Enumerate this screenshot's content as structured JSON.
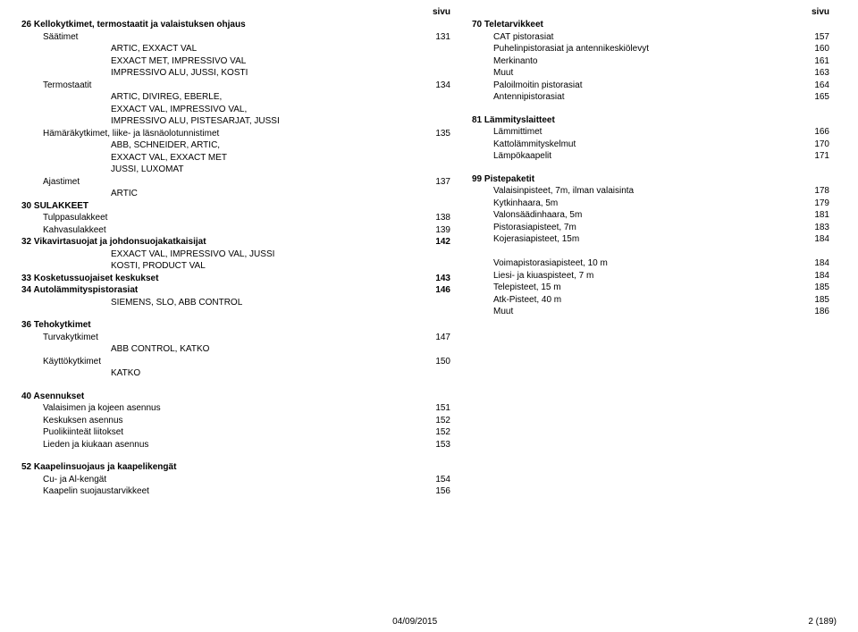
{
  "left": {
    "header": "sivu",
    "sections": [
      {
        "title": "26 Kellokytkimet, termostaatit ja valaistuksen ohjaus",
        "rows": [
          {
            "indent": 1,
            "label": "Säätimet",
            "page": "131"
          },
          {
            "indent": 2,
            "label": "ARTIC, EXXACT VAL"
          },
          {
            "indent": 2,
            "label": "EXXACT MET, IMPRESSIVO VAL"
          },
          {
            "indent": 2,
            "label": "IMPRESSIVO ALU, JUSSI, KOSTI"
          },
          {
            "indent": 1,
            "label": "Termostaatit",
            "page": "134"
          },
          {
            "indent": 2,
            "label": "ARTIC, DIVIREG, EBERLE,"
          },
          {
            "indent": 2,
            "label": "EXXACT VAL, IMPRESSIVO VAL,"
          },
          {
            "indent": 2,
            "label": "IMPRESSIVO ALU, PISTESARJAT, JUSSI"
          },
          {
            "indent": 1,
            "label": "Hämäräkytkimet, liike- ja läsnäolotunnistimet",
            "page": "135"
          },
          {
            "indent": 2,
            "label": "ABB, SCHNEIDER, ARTIC,"
          },
          {
            "indent": 2,
            "label": "EXXACT VAL, EXXACT MET"
          },
          {
            "indent": 2,
            "label": "JUSSI, LUXOMAT"
          },
          {
            "indent": 1,
            "label": "Ajastimet",
            "page": "137"
          },
          {
            "indent": 2,
            "label": "ARTIC"
          }
        ]
      },
      {
        "title": "30 SULAKKEET",
        "rows": [
          {
            "indent": 1,
            "label": "Tulppasulakkeet",
            "page": "138"
          },
          {
            "indent": 1,
            "label": "Kahvasulakkeet",
            "page": "139"
          }
        ]
      },
      {
        "title": "32 Vikavirtasuojat ja johdonsuojakatkaisijat",
        "title_page": "142",
        "rows": [
          {
            "indent": 2,
            "label": "EXXACT VAL, IMPRESSIVO VAL, JUSSI"
          },
          {
            "indent": 2,
            "label": "KOSTI, PRODUCT VAL"
          }
        ]
      },
      {
        "title": "33 Kosketussuojaiset keskukset",
        "title_page": "143",
        "rows": []
      },
      {
        "title": "34 Autolämmityspistorasiat",
        "title_page": "146",
        "rows": [
          {
            "indent": 2,
            "label": "SIEMENS, SLO, ABB CONTROL"
          }
        ]
      },
      {
        "title": "36 Tehokytkimet",
        "spacer_before": true,
        "rows": [
          {
            "indent": 1,
            "label": "Turvakytkimet",
            "page": "147"
          },
          {
            "indent": 2,
            "label": "ABB CONTROL, KATKO"
          },
          {
            "indent": 1,
            "label": "Käyttökytkimet",
            "page": "150"
          },
          {
            "indent": 2,
            "label": "KATKO"
          }
        ]
      },
      {
        "title": "40 Asennukset",
        "spacer_before": true,
        "rows": [
          {
            "indent": 1,
            "label": "Valaisimen ja kojeen asennus",
            "page": "151"
          },
          {
            "indent": 1,
            "label": "Keskuksen asennus",
            "page": "152"
          },
          {
            "indent": 1,
            "label": "Puolikiinteät liitokset",
            "page": "152"
          },
          {
            "indent": 1,
            "label": "Lieden ja kiukaan asennus",
            "page": "153"
          }
        ]
      },
      {
        "title": "52 Kaapelinsuojaus ja kaapelikengät",
        "spacer_before": true,
        "rows": [
          {
            "indent": 1,
            "label": "Cu- ja Al-kengät",
            "page": "154"
          },
          {
            "indent": 1,
            "label": "Kaapelin suojaustarvikkeet",
            "page": "156"
          }
        ]
      }
    ]
  },
  "right": {
    "header": "sivu",
    "sections": [
      {
        "title": "70 Teletarvikkeet",
        "rows": [
          {
            "indent": 1,
            "label": "CAT pistorasiat",
            "page": "157"
          },
          {
            "indent": 1,
            "label": "Puhelinpistorasiat ja antennikeskiölevyt",
            "page": "160"
          },
          {
            "indent": 1,
            "label": "Merkinanto",
            "page": "161"
          },
          {
            "indent": 1,
            "label": "Muut",
            "page": "163"
          },
          {
            "indent": 1,
            "label": "Paloilmoitin pistorasiat",
            "page": "164"
          },
          {
            "indent": 1,
            "label": "Antennipistorasiat",
            "page": "165"
          }
        ]
      },
      {
        "title": "81 Lämmityslaitteet",
        "spacer_before": true,
        "rows": [
          {
            "indent": 1,
            "label": "Lämmittimet",
            "page": "166"
          },
          {
            "indent": 1,
            "label": "Kattolämmityskelmut",
            "page": "170"
          },
          {
            "indent": 1,
            "label": "Lämpökaapelit",
            "page": "171"
          }
        ]
      },
      {
        "title": "99 Pistepaketit",
        "spacer_before": true,
        "rows": [
          {
            "indent": 1,
            "label": "Valaisinpisteet, 7m, ilman valaisinta",
            "page": "178"
          },
          {
            "indent": 1,
            "label": "Kytkinhaara, 5m",
            "page": "179"
          },
          {
            "indent": 1,
            "label": "Valonsäädinhaara, 5m",
            "page": "181"
          },
          {
            "indent": 1,
            "label": "Pistorasiapisteet, 7m",
            "page": "183"
          },
          {
            "indent": 1,
            "label": "Kojerasiapisteet, 15m",
            "page": "184"
          },
          {
            "indent": 1,
            "label": "",
            "page": ""
          },
          {
            "indent": 1,
            "label": "Voimapistorasiapisteet, 10 m",
            "page": "184"
          },
          {
            "indent": 1,
            "label": "Liesi- ja kiuaspisteet, 7 m",
            "page": "184"
          },
          {
            "indent": 1,
            "label": "Telepisteet, 15 m",
            "page": "185"
          },
          {
            "indent": 1,
            "label": "Atk-Pisteet, 40 m",
            "page": "185"
          },
          {
            "indent": 1,
            "label": "Muut",
            "page": "186"
          }
        ]
      }
    ]
  },
  "footer": {
    "date": "04/09/2015",
    "page": "2 (189)"
  }
}
